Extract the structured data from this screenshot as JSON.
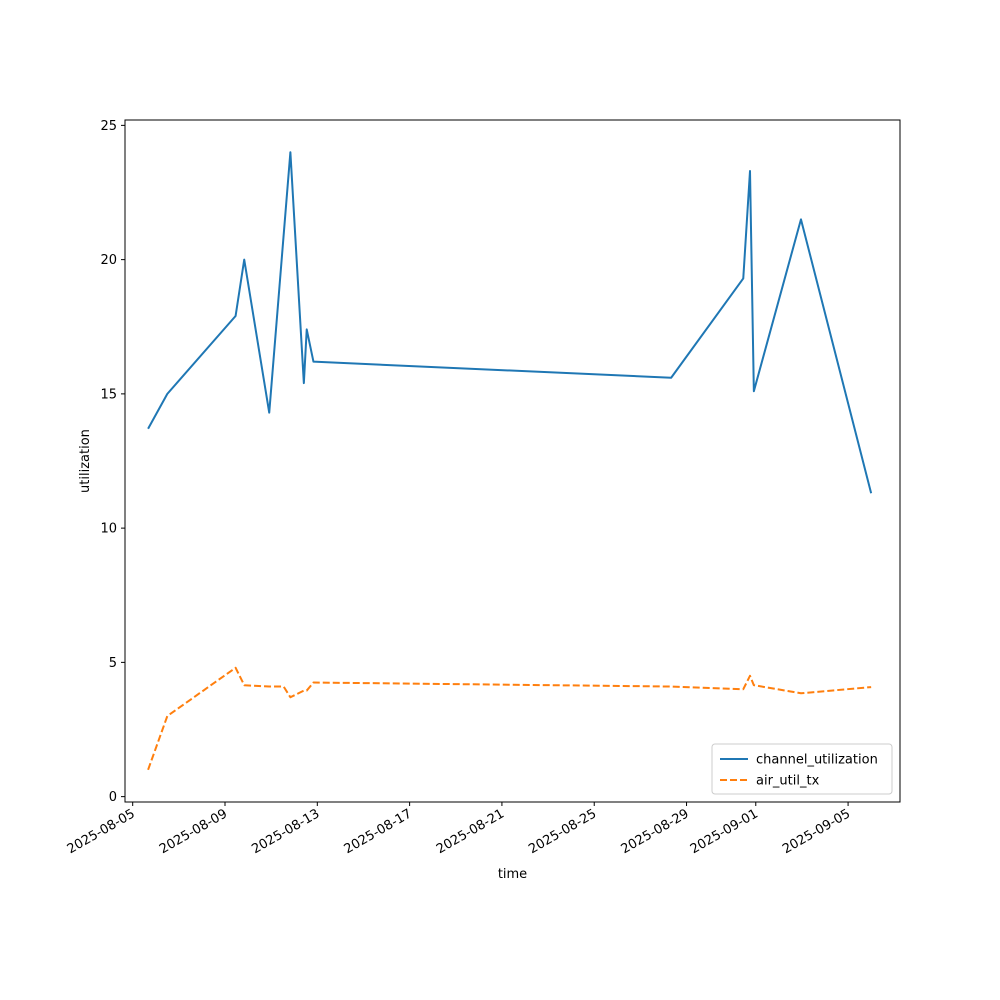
{
  "chart_data": {
    "type": "line",
    "title": "",
    "xlabel": "time",
    "ylabel": "utilization",
    "x_type": "date",
    "xlim": [
      "2025-08-04T16:00",
      "2025-09-07T06:00"
    ],
    "ylim": [
      -0.2,
      25.2
    ],
    "x_ticks": [
      "2025-08-05",
      "2025-08-09",
      "2025-08-13",
      "2025-08-17",
      "2025-08-21",
      "2025-08-25",
      "2025-08-29",
      "2025-09-01",
      "2025-09-05"
    ],
    "y_ticks": [
      0,
      5,
      10,
      15,
      20,
      25
    ],
    "grid": false,
    "legend_position": "lower-right",
    "series": [
      {
        "name": "channel_utilization",
        "color": "#1f77b4",
        "line_style": "solid",
        "points": [
          {
            "x": "2025-08-05T16:00",
            "y": 13.7
          },
          {
            "x": "2025-08-06T12:00",
            "y": 15.0
          },
          {
            "x": "2025-08-09T11:00",
            "y": 17.9
          },
          {
            "x": "2025-08-09T20:00",
            "y": 20.0
          },
          {
            "x": "2025-08-10T22:00",
            "y": 14.3
          },
          {
            "x": "2025-08-11T20:00",
            "y": 24.0
          },
          {
            "x": "2025-08-12T10:00",
            "y": 15.4
          },
          {
            "x": "2025-08-12T13:00",
            "y": 17.4
          },
          {
            "x": "2025-08-12T20:00",
            "y": 16.2
          },
          {
            "x": "2025-08-28T08:00",
            "y": 15.6
          },
          {
            "x": "2025-08-31T11:00",
            "y": 19.3
          },
          {
            "x": "2025-08-31T18:00",
            "y": 23.3
          },
          {
            "x": "2025-08-31T22:00",
            "y": 15.1
          },
          {
            "x": "2025-09-02T23:00",
            "y": 21.5
          },
          {
            "x": "2025-09-06T00:00",
            "y": 11.3
          }
        ]
      },
      {
        "name": "air_util_tx",
        "color": "#ff7f0e",
        "line_style": "dashed",
        "points": [
          {
            "x": "2025-08-05T16:00",
            "y": 1.0
          },
          {
            "x": "2025-08-06T12:00",
            "y": 3.0
          },
          {
            "x": "2025-08-09T11:00",
            "y": 4.8
          },
          {
            "x": "2025-08-09T20:00",
            "y": 4.15
          },
          {
            "x": "2025-08-10T22:00",
            "y": 4.1
          },
          {
            "x": "2025-08-11T13:00",
            "y": 4.1
          },
          {
            "x": "2025-08-11T20:00",
            "y": 3.7
          },
          {
            "x": "2025-08-12T10:00",
            "y": 3.95
          },
          {
            "x": "2025-08-12T13:00",
            "y": 3.95
          },
          {
            "x": "2025-08-12T20:00",
            "y": 4.25
          },
          {
            "x": "2025-08-28T08:00",
            "y": 4.1
          },
          {
            "x": "2025-08-31T11:00",
            "y": 4.0
          },
          {
            "x": "2025-08-31T18:00",
            "y": 4.5
          },
          {
            "x": "2025-08-31T22:00",
            "y": 4.15
          },
          {
            "x": "2025-09-02T23:00",
            "y": 3.85
          },
          {
            "x": "2025-09-06T00:00",
            "y": 4.08
          }
        ]
      }
    ]
  }
}
